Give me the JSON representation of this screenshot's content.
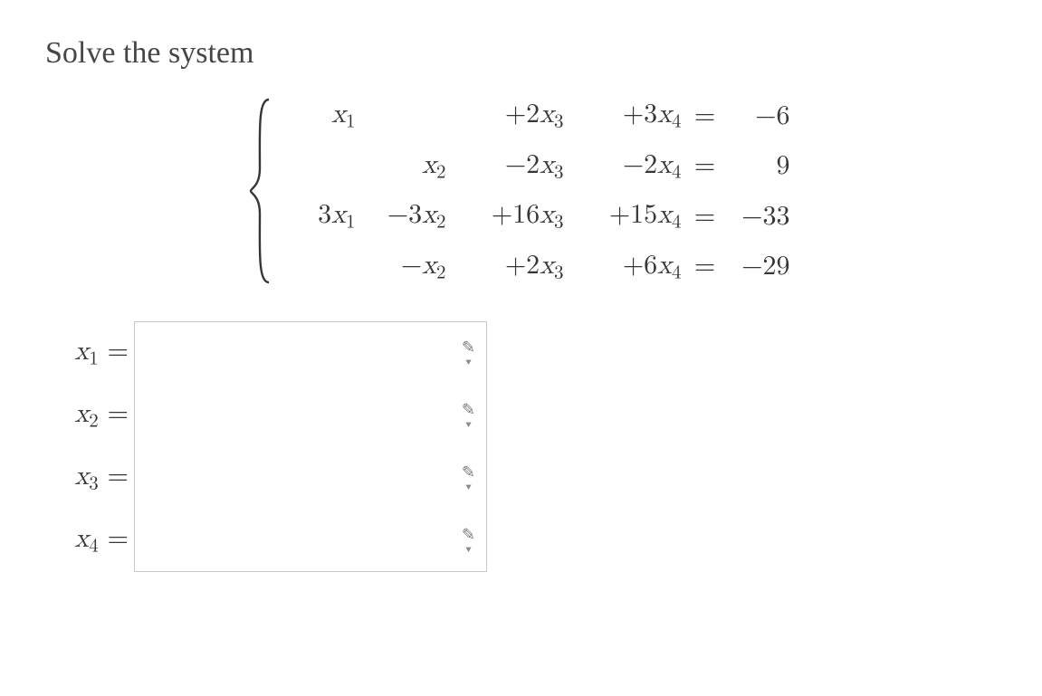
{
  "prompt": "Solve the system",
  "equations": {
    "rows": [
      {
        "c1": "x₁",
        "c2": "",
        "c3": "+2x₃",
        "c4": "+3x₄",
        "eq": "=",
        "rhs": "−6"
      },
      {
        "c1": "",
        "c2": "x₂",
        "c3": "−2x₃",
        "c4": "−2x₄",
        "eq": "=",
        "rhs": "9"
      },
      {
        "c1": "3x₁",
        "c2": "−3x₂",
        "c3": "+16x₃",
        "c4": "+15x₄",
        "eq": "=",
        "rhs": "−33"
      },
      {
        "c1": "",
        "c2": "−x₂",
        "c3": "+2x₃",
        "c4": "+6x₄",
        "eq": "=",
        "rhs": "−29"
      }
    ]
  },
  "answers": [
    {
      "label": "x₁ =",
      "value": ""
    },
    {
      "label": "x₂ =",
      "value": ""
    },
    {
      "label": "x₃ =",
      "value": ""
    },
    {
      "label": "x₄ =",
      "value": ""
    }
  ],
  "colors": {
    "text": "#444444",
    "math": "#363636",
    "border": "#c9c9c9",
    "icon": "#7a7a7a",
    "background": "#ffffff"
  }
}
